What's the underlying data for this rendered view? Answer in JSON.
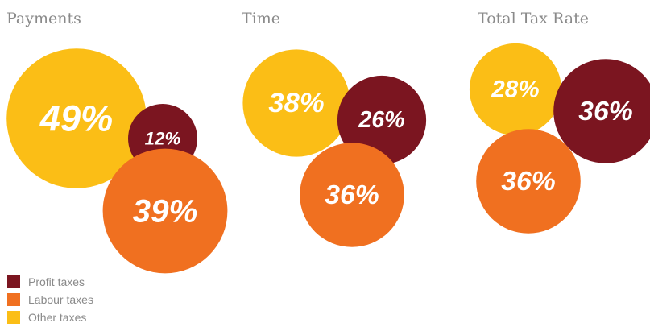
{
  "colors": {
    "profit": "#7b1520",
    "labour": "#f07020",
    "other": "#fbbe16",
    "title": "#8a8a8a",
    "legend_text": "#8a8a8a",
    "bubble_text": "#ffffff"
  },
  "legend": [
    {
      "key": "profit",
      "label": "Profit taxes"
    },
    {
      "key": "labour",
      "label": "Labour taxes"
    },
    {
      "key": "other",
      "label": "Other taxes"
    }
  ],
  "chart_data": [
    {
      "type": "bubble",
      "title": "Payments",
      "series": [
        {
          "category": "Other taxes",
          "key": "other",
          "value": 49,
          "label": "49%"
        },
        {
          "category": "Profit taxes",
          "key": "profit",
          "value": 12,
          "label": "12%"
        },
        {
          "category": "Labour taxes",
          "key": "labour",
          "value": 39,
          "label": "39%"
        }
      ]
    },
    {
      "type": "bubble",
      "title": "Time",
      "series": [
        {
          "category": "Other taxes",
          "key": "other",
          "value": 38,
          "label": "38%"
        },
        {
          "category": "Profit taxes",
          "key": "profit",
          "value": 26,
          "label": "26%"
        },
        {
          "category": "Labour taxes",
          "key": "labour",
          "value": 36,
          "label": "36%"
        }
      ]
    },
    {
      "type": "bubble",
      "title": "Total Tax Rate",
      "series": [
        {
          "category": "Other taxes",
          "key": "other",
          "value": 28,
          "label": "28%"
        },
        {
          "category": "Profit taxes",
          "key": "profit",
          "value": 36,
          "label": "36%"
        },
        {
          "category": "Labour taxes",
          "key": "labour",
          "value": 36,
          "label": "36%"
        }
      ]
    }
  ]
}
